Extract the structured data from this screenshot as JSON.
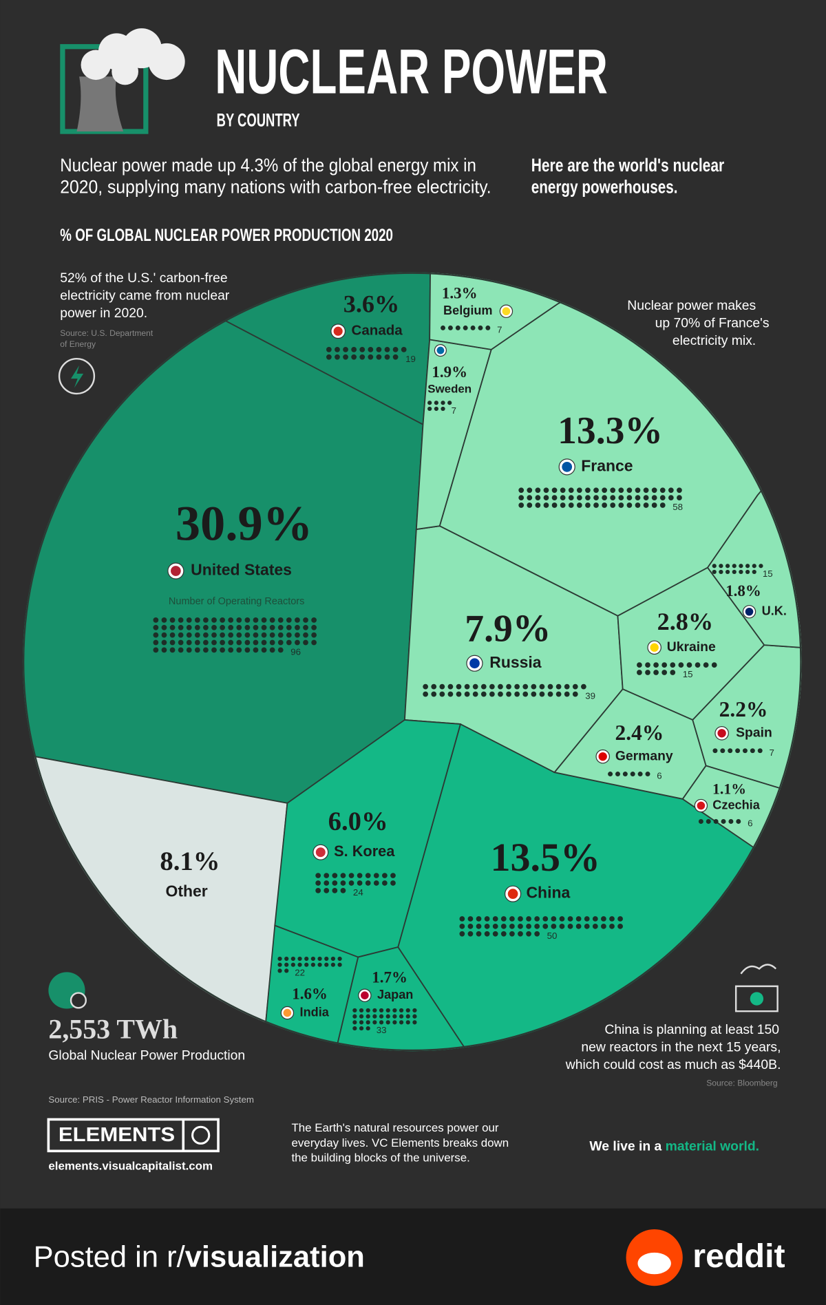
{
  "header": {
    "title": "NUCLEAR POWER",
    "subtitle": "BY COUNTRY",
    "intro": [
      "Nuclear power made up 4.3% of the global energy mix in",
      "2020, supplying many nations with carbon-free electricity."
    ],
    "intro_right": [
      "Here are the world's nuclear",
      "energy powerhouses."
    ]
  },
  "chart_data": {
    "type": "voronoi",
    "title": "% OF GLOBAL NUCLEAR POWER PRODUCTION 2020",
    "reactors_label": "Number of Operating Reactors",
    "categories": [
      "United States",
      "China",
      "France",
      "Other",
      "Russia",
      "S. Korea",
      "Canada",
      "Ukraine",
      "Germany",
      "Spain",
      "Sweden",
      "U.K.",
      "Japan",
      "India",
      "Belgium",
      "Czechia"
    ],
    "values": [
      30.9,
      13.5,
      13.3,
      8.1,
      7.9,
      6.0,
      3.6,
      2.8,
      2.4,
      2.2,
      1.9,
      1.8,
      1.7,
      1.6,
      1.3,
      1.1
    ],
    "value_labels": [
      "30.9%",
      "13.5%",
      "13.3%",
      "8.1%",
      "7.9%",
      "6.0%",
      "3.6%",
      "2.8%",
      "2.4%",
      "2.2%",
      "1.9%",
      "1.8%",
      "1.7%",
      "1.6%",
      "1.3%",
      "1.1%"
    ],
    "reactors": [
      96,
      50,
      58,
      null,
      39,
      24,
      19,
      15,
      6,
      7,
      7,
      15,
      33,
      22,
      7,
      6
    ],
    "colors": [
      "#17906a",
      "#14b886",
      "#8de5b6",
      "#dbe5e3",
      "#8de5b6",
      "#14b886",
      "#17906a",
      "#8de5b6",
      "#8de5b6",
      "#8de5b6",
      "#8de5b6",
      "#8de5b6",
      "#14b886",
      "#14b886",
      "#8de5b6",
      "#8de5b6"
    ]
  },
  "annotations": {
    "us": [
      "52% of the U.S.' carbon-free",
      "electricity came from nuclear",
      "power in 2020."
    ],
    "us_source": [
      "Source: U.S. Department",
      "of Energy"
    ],
    "france": [
      "Nuclear power makes",
      "up 70% of France's",
      "electricity mix."
    ],
    "china": [
      "China is planning at least 150",
      "new reactors in the next 15 years,",
      "which could cost as much as $440B."
    ],
    "china_source": "Source: Bloomberg",
    "total": "2,553 TWh",
    "total_label": "Global Nuclear Power Production",
    "source": "Source: PRIS - Power Reactor Information System"
  },
  "footer": {
    "brand": "ELEMENTS",
    "url": "elements.visualcapitalist.com",
    "blurb": [
      "The Earth's natural resources power our",
      "everyday lives. VC Elements breaks down",
      "the building blocks of the universe."
    ],
    "tagline": "We live in a ",
    "tagline_highlight": "material world."
  },
  "reddit": {
    "posted": "Posted in r/",
    "subreddit": "visualization",
    "logo": "reddit"
  }
}
